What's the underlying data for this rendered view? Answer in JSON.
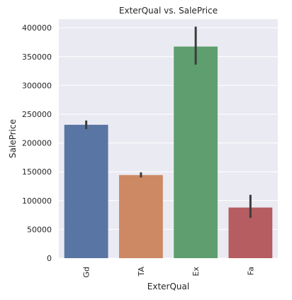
{
  "chart_data": {
    "type": "bar",
    "title": "ExterQual vs. SalePrice",
    "xlabel": "ExterQual",
    "ylabel": "SalePrice",
    "categories": [
      "Gd",
      "TA",
      "Ex",
      "Fa"
    ],
    "values": [
      231600,
      144300,
      367400,
      87900
    ],
    "error_low": [
      224000,
      140000,
      336000,
      70000
    ],
    "error_high": [
      239000,
      149000,
      402000,
      110000
    ],
    "ylim": [
      0,
      415000
    ],
    "yticks": [
      0,
      50000,
      100000,
      150000,
      200000,
      250000,
      300000,
      350000,
      400000
    ],
    "grid": true,
    "colors": [
      "#5975a4",
      "#cc8963",
      "#5f9e6e",
      "#b55d60"
    ],
    "background": "#eaeaf2",
    "errorbar_color": "#3c3c3c"
  }
}
